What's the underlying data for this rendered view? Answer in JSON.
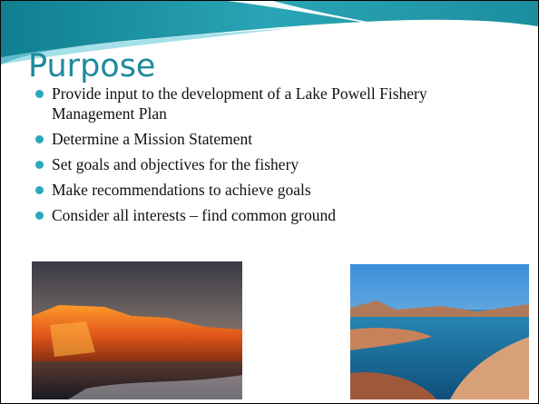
{
  "slide": {
    "title": "Purpose",
    "bullets": [
      "Provide input to the development of a Lake Powell Fishery Management Plan",
      "Determine a Mission Statement",
      "Set goals and objectives for the fishery",
      "Make recommendations to achieve goals",
      "Consider all interests – find common ground"
    ]
  }
}
